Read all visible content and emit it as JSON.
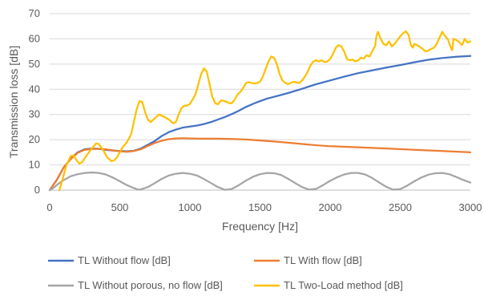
{
  "chart_data": {
    "type": "line",
    "title": "",
    "xlabel": "Frequency [Hz]",
    "ylabel": "Transmission loss [dB]",
    "xlim": [
      0,
      3000
    ],
    "ylim": [
      0,
      70
    ],
    "x_ticks": [
      0,
      500,
      1000,
      1500,
      2000,
      2500,
      3000
    ],
    "y_ticks": [
      0,
      10,
      20,
      30,
      40,
      50,
      60,
      70
    ],
    "x_tick_labels": [
      "0",
      "500",
      "1000",
      "1500",
      "2000",
      "2500",
      "3000"
    ],
    "y_tick_labels": [
      "0",
      "10",
      "20",
      "30",
      "40",
      "50",
      "60",
      "70"
    ],
    "grid": "horizontal",
    "legend_position": "bottom",
    "series": [
      {
        "name": "TL Without flow [dB]",
        "color": "#4472C4",
        "points": [
          [
            0,
            0
          ],
          [
            50,
            4
          ],
          [
            100,
            9
          ],
          [
            150,
            12.5
          ],
          [
            200,
            15
          ],
          [
            250,
            16.2
          ],
          [
            300,
            16.5
          ],
          [
            350,
            16.4
          ],
          [
            400,
            16
          ],
          [
            450,
            15.7
          ],
          [
            500,
            15.5
          ],
          [
            550,
            15.4
          ],
          [
            600,
            15.6
          ],
          [
            650,
            16.5
          ],
          [
            700,
            18
          ],
          [
            750,
            19.5
          ],
          [
            800,
            21.5
          ],
          [
            850,
            23
          ],
          [
            900,
            24
          ],
          [
            950,
            24.8
          ],
          [
            1000,
            25.2
          ],
          [
            1050,
            25.6
          ],
          [
            1100,
            26.2
          ],
          [
            1150,
            27
          ],
          [
            1200,
            28
          ],
          [
            1250,
            29
          ],
          [
            1300,
            30.2
          ],
          [
            1350,
            31.5
          ],
          [
            1400,
            33
          ],
          [
            1450,
            34.2
          ],
          [
            1500,
            35.3
          ],
          [
            1550,
            36.3
          ],
          [
            1600,
            37
          ],
          [
            1700,
            38.5
          ],
          [
            1800,
            40.2
          ],
          [
            1900,
            42
          ],
          [
            2000,
            43.5
          ],
          [
            2100,
            45
          ],
          [
            2200,
            46.4
          ],
          [
            2300,
            47.5
          ],
          [
            2400,
            48.6
          ],
          [
            2500,
            49.6
          ],
          [
            2600,
            50.7
          ],
          [
            2700,
            51.7
          ],
          [
            2800,
            52.4
          ],
          [
            2900,
            52.9
          ],
          [
            3000,
            53.2
          ]
        ]
      },
      {
        "name": "TL With flow [dB]",
        "color": "#ED7D31",
        "points": [
          [
            0,
            0
          ],
          [
            50,
            4
          ],
          [
            100,
            9
          ],
          [
            150,
            12.3
          ],
          [
            200,
            14.8
          ],
          [
            250,
            16
          ],
          [
            300,
            16.3
          ],
          [
            350,
            16.4
          ],
          [
            400,
            16.2
          ],
          [
            450,
            15.8
          ],
          [
            500,
            15.4
          ],
          [
            550,
            15.2
          ],
          [
            600,
            15.5
          ],
          [
            650,
            16.2
          ],
          [
            700,
            17.5
          ],
          [
            750,
            18.7
          ],
          [
            800,
            19.6
          ],
          [
            850,
            20.2
          ],
          [
            900,
            20.5
          ],
          [
            950,
            20.6
          ],
          [
            1000,
            20.5
          ],
          [
            1100,
            20.4
          ],
          [
            1200,
            20.4
          ],
          [
            1300,
            20.3
          ],
          [
            1400,
            20.1
          ],
          [
            1500,
            19.7
          ],
          [
            1600,
            19.3
          ],
          [
            1700,
            18.8
          ],
          [
            1800,
            18.3
          ],
          [
            1900,
            17.8
          ],
          [
            2000,
            17.4
          ],
          [
            2200,
            17
          ],
          [
            2400,
            16.5
          ],
          [
            2600,
            16
          ],
          [
            2800,
            15.5
          ],
          [
            3000,
            15
          ]
        ]
      },
      {
        "name": "TL Without porous, no flow [dB]",
        "color": "#A5A5A5",
        "points": [
          [
            0,
            0
          ],
          [
            30,
            1
          ],
          [
            50,
            2
          ],
          [
            100,
            4
          ],
          [
            150,
            5.5
          ],
          [
            200,
            6.3
          ],
          [
            250,
            6.8
          ],
          [
            300,
            7
          ],
          [
            350,
            6.8
          ],
          [
            400,
            6.2
          ],
          [
            450,
            5
          ],
          [
            500,
            3.5
          ],
          [
            550,
            2
          ],
          [
            600,
            0.8
          ],
          [
            630,
            0.2
          ],
          [
            650,
            0.3
          ],
          [
            700,
            1.2
          ],
          [
            750,
            2.8
          ],
          [
            800,
            4.5
          ],
          [
            850,
            5.8
          ],
          [
            900,
            6.5
          ],
          [
            950,
            6.8
          ],
          [
            1000,
            6.5
          ],
          [
            1050,
            5.8
          ],
          [
            1100,
            4.4
          ],
          [
            1150,
            2.8
          ],
          [
            1200,
            1.2
          ],
          [
            1250,
            0.1
          ],
          [
            1300,
            0.5
          ],
          [
            1350,
            2
          ],
          [
            1400,
            3.8
          ],
          [
            1450,
            5.3
          ],
          [
            1500,
            6.3
          ],
          [
            1550,
            6.8
          ],
          [
            1600,
            6.7
          ],
          [
            1650,
            6
          ],
          [
            1700,
            4.5
          ],
          [
            1750,
            2.8
          ],
          [
            1800,
            1.2
          ],
          [
            1850,
            0.2
          ],
          [
            1900,
            0.5
          ],
          [
            1950,
            2
          ],
          [
            2000,
            3.7
          ],
          [
            2050,
            5.1
          ],
          [
            2100,
            6.2
          ],
          [
            2150,
            6.8
          ],
          [
            2200,
            6.8
          ],
          [
            2250,
            6.2
          ],
          [
            2300,
            4.8
          ],
          [
            2350,
            3
          ],
          [
            2400,
            1.3
          ],
          [
            2450,
            0.2
          ],
          [
            2500,
            0.4
          ],
          [
            2550,
            1.8
          ],
          [
            2600,
            3.5
          ],
          [
            2650,
            5
          ],
          [
            2700,
            6.1
          ],
          [
            2750,
            6.7
          ],
          [
            2800,
            6.8
          ],
          [
            2850,
            6.3
          ],
          [
            2900,
            5.2
          ],
          [
            2950,
            4
          ],
          [
            3000,
            3
          ]
        ]
      },
      {
        "name": "TL Two-Load method [dB]",
        "color": "#FFC000",
        "points": [
          [
            70,
            0
          ],
          [
            80,
            2
          ],
          [
            100,
            6
          ],
          [
            120,
            10
          ],
          [
            150,
            13.5
          ],
          [
            170,
            13.8
          ],
          [
            190,
            12
          ],
          [
            210,
            10.5
          ],
          [
            230,
            11
          ],
          [
            260,
            13.5
          ],
          [
            300,
            16.5
          ],
          [
            330,
            18.5
          ],
          [
            350,
            18.3
          ],
          [
            380,
            16
          ],
          [
            410,
            13
          ],
          [
            440,
            11.5
          ],
          [
            460,
            11.8
          ],
          [
            480,
            13
          ],
          [
            500,
            15
          ],
          [
            520,
            17
          ],
          [
            550,
            19
          ],
          [
            580,
            22
          ],
          [
            600,
            27
          ],
          [
            620,
            32
          ],
          [
            640,
            35.3
          ],
          [
            660,
            35
          ],
          [
            680,
            31
          ],
          [
            700,
            28
          ],
          [
            720,
            27
          ],
          [
            750,
            28.5
          ],
          [
            780,
            30
          ],
          [
            800,
            29.5
          ],
          [
            820,
            29
          ],
          [
            850,
            28
          ],
          [
            880,
            26.5
          ],
          [
            900,
            27
          ],
          [
            920,
            30
          ],
          [
            940,
            32.5
          ],
          [
            960,
            33.5
          ],
          [
            980,
            33.5
          ],
          [
            1000,
            34.2
          ],
          [
            1020,
            36
          ],
          [
            1040,
            38
          ],
          [
            1060,
            42
          ],
          [
            1080,
            46
          ],
          [
            1100,
            48.3
          ],
          [
            1120,
            47
          ],
          [
            1140,
            42
          ],
          [
            1160,
            37
          ],
          [
            1180,
            34.5
          ],
          [
            1200,
            34
          ],
          [
            1220,
            35.5
          ],
          [
            1240,
            35.5
          ],
          [
            1260,
            35
          ],
          [
            1280,
            34.5
          ],
          [
            1300,
            34.5
          ],
          [
            1320,
            36
          ],
          [
            1340,
            38
          ],
          [
            1360,
            39
          ],
          [
            1380,
            40.5
          ],
          [
            1400,
            42.5
          ],
          [
            1420,
            42.8
          ],
          [
            1440,
            42.5
          ],
          [
            1460,
            42.3
          ],
          [
            1480,
            42.5
          ],
          [
            1500,
            43
          ],
          [
            1520,
            45
          ],
          [
            1540,
            48
          ],
          [
            1560,
            51
          ],
          [
            1580,
            53
          ],
          [
            1600,
            52.5
          ],
          [
            1620,
            50
          ],
          [
            1640,
            46
          ],
          [
            1660,
            43.5
          ],
          [
            1680,
            42.5
          ],
          [
            1700,
            42
          ],
          [
            1720,
            42.5
          ],
          [
            1740,
            43
          ],
          [
            1760,
            42.7
          ],
          [
            1780,
            42.5
          ],
          [
            1800,
            43.5
          ],
          [
            1820,
            45
          ],
          [
            1840,
            47
          ],
          [
            1860,
            49.5
          ],
          [
            1880,
            51
          ],
          [
            1900,
            51.5
          ],
          [
            1920,
            51
          ],
          [
            1940,
            51.5
          ],
          [
            1960,
            50.8
          ],
          [
            1980,
            51
          ],
          [
            2000,
            52
          ],
          [
            2020,
            54
          ],
          [
            2040,
            56.5
          ],
          [
            2060,
            57.5
          ],
          [
            2080,
            57
          ],
          [
            2100,
            55
          ],
          [
            2120,
            52
          ],
          [
            2140,
            51.5
          ],
          [
            2160,
            51.8
          ],
          [
            2180,
            51
          ],
          [
            2200,
            51.5
          ],
          [
            2220,
            52.5
          ],
          [
            2240,
            52.2
          ],
          [
            2260,
            53.5
          ],
          [
            2280,
            53
          ],
          [
            2300,
            55
          ],
          [
            2320,
            57
          ],
          [
            2330,
            61
          ],
          [
            2340,
            62.8
          ],
          [
            2350,
            61.5
          ],
          [
            2360,
            60
          ],
          [
            2380,
            58
          ],
          [
            2400,
            57.5
          ],
          [
            2420,
            59
          ],
          [
            2440,
            57
          ],
          [
            2460,
            58
          ],
          [
            2480,
            59.5
          ],
          [
            2500,
            61
          ],
          [
            2520,
            62.2
          ],
          [
            2540,
            63
          ],
          [
            2560,
            61.5
          ],
          [
            2575,
            57.5
          ],
          [
            2590,
            56.5
          ],
          [
            2600,
            58
          ],
          [
            2620,
            57.5
          ],
          [
            2640,
            56.8
          ],
          [
            2660,
            56
          ],
          [
            2680,
            55
          ],
          [
            2700,
            55.3
          ],
          [
            2720,
            56
          ],
          [
            2740,
            56.5
          ],
          [
            2760,
            58
          ],
          [
            2780,
            60.5
          ],
          [
            2800,
            62.8
          ],
          [
            2820,
            61
          ],
          [
            2840,
            59.8
          ],
          [
            2860,
            56.5
          ],
          [
            2870,
            55.5
          ],
          [
            2880,
            60
          ],
          [
            2900,
            59.5
          ],
          [
            2920,
            58.8
          ],
          [
            2940,
            57.5
          ],
          [
            2960,
            60
          ],
          [
            2980,
            58.5
          ],
          [
            3000,
            59
          ]
        ]
      }
    ]
  }
}
